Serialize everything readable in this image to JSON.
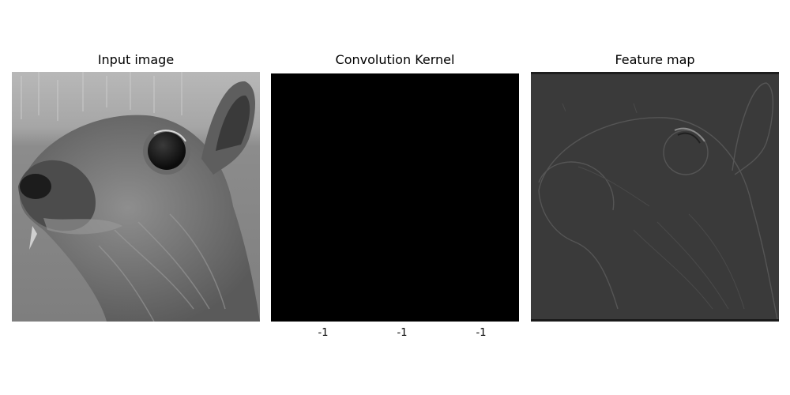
{
  "panels": {
    "input": {
      "title": "Input image"
    },
    "kernel": {
      "title": "Convolution Kernel",
      "bottom_labels": [
        "-1",
        "-1",
        "-1"
      ]
    },
    "feature": {
      "title": "Feature map"
    }
  },
  "colors": {
    "kernel_fill": "#000000",
    "feature_background": "#3a3a3a",
    "input_background": "#8a8a8a"
  }
}
